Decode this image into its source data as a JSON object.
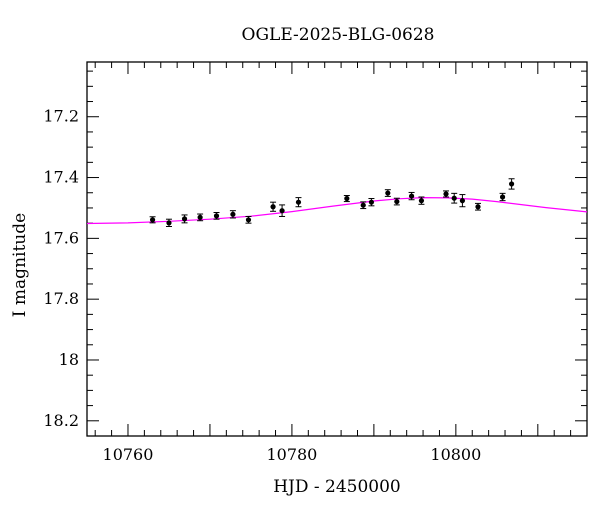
{
  "chart_data": {
    "type": "scatter",
    "title": "OGLE-2025-BLG-0628",
    "xlabel": "HJD - 2450000",
    "ylabel": "I magnitude",
    "xlim": [
      10755,
      10816
    ],
    "ylim": [
      18.25,
      17.02
    ],
    "y_inverted": true,
    "x_ticks": [
      10760,
      10780,
      10800
    ],
    "y_ticks": [
      17.2,
      17.4,
      17.6,
      17.8,
      18,
      18.2
    ],
    "y_tick_labels": [
      "17.2",
      "17.4",
      "17.6",
      "17.8",
      "18",
      "18.2"
    ],
    "x_tick_labels": [
      "10760",
      "10780",
      "10800"
    ],
    "grid": false,
    "series": [
      {
        "kind": "points_with_errorbars",
        "color": "#000000",
        "points": [
          {
            "x": 10763.0,
            "y": 17.539,
            "err": 0.01
          },
          {
            "x": 10765.0,
            "y": 17.549,
            "err": 0.012
          },
          {
            "x": 10766.9,
            "y": 17.536,
            "err": 0.013
          },
          {
            "x": 10768.8,
            "y": 17.531,
            "err": 0.011
          },
          {
            "x": 10770.8,
            "y": 17.526,
            "err": 0.011
          },
          {
            "x": 10772.8,
            "y": 17.521,
            "err": 0.012
          },
          {
            "x": 10774.7,
            "y": 17.539,
            "err": 0.011
          },
          {
            "x": 10777.7,
            "y": 17.496,
            "err": 0.015
          },
          {
            "x": 10778.8,
            "y": 17.509,
            "err": 0.019
          },
          {
            "x": 10780.8,
            "y": 17.481,
            "err": 0.015
          },
          {
            "x": 10786.7,
            "y": 17.469,
            "err": 0.01
          },
          {
            "x": 10788.7,
            "y": 17.491,
            "err": 0.011
          },
          {
            "x": 10789.7,
            "y": 17.481,
            "err": 0.012
          },
          {
            "x": 10791.7,
            "y": 17.451,
            "err": 0.011
          },
          {
            "x": 10792.8,
            "y": 17.479,
            "err": 0.011
          },
          {
            "x": 10794.6,
            "y": 17.461,
            "err": 0.012
          },
          {
            "x": 10795.8,
            "y": 17.476,
            "err": 0.012
          },
          {
            "x": 10798.8,
            "y": 17.454,
            "err": 0.01
          },
          {
            "x": 10799.8,
            "y": 17.468,
            "err": 0.016
          },
          {
            "x": 10800.8,
            "y": 17.476,
            "err": 0.02
          },
          {
            "x": 10802.7,
            "y": 17.496,
            "err": 0.011
          },
          {
            "x": 10805.7,
            "y": 17.464,
            "err": 0.012
          },
          {
            "x": 10806.8,
            "y": 17.421,
            "err": 0.017
          }
        ]
      },
      {
        "kind": "model_curve",
        "color": "#ff00ff",
        "points": [
          {
            "x": 10755,
            "y": 17.551
          },
          {
            "x": 10760,
            "y": 17.549
          },
          {
            "x": 10765,
            "y": 17.544
          },
          {
            "x": 10770,
            "y": 17.537
          },
          {
            "x": 10775,
            "y": 17.527
          },
          {
            "x": 10780,
            "y": 17.512
          },
          {
            "x": 10785,
            "y": 17.494
          },
          {
            "x": 10790,
            "y": 17.477
          },
          {
            "x": 10793,
            "y": 17.47
          },
          {
            "x": 10796,
            "y": 17.466
          },
          {
            "x": 10799,
            "y": 17.467
          },
          {
            "x": 10802,
            "y": 17.471
          },
          {
            "x": 10805,
            "y": 17.479
          },
          {
            "x": 10808,
            "y": 17.489
          },
          {
            "x": 10811,
            "y": 17.499
          },
          {
            "x": 10816,
            "y": 17.513
          }
        ]
      }
    ]
  }
}
